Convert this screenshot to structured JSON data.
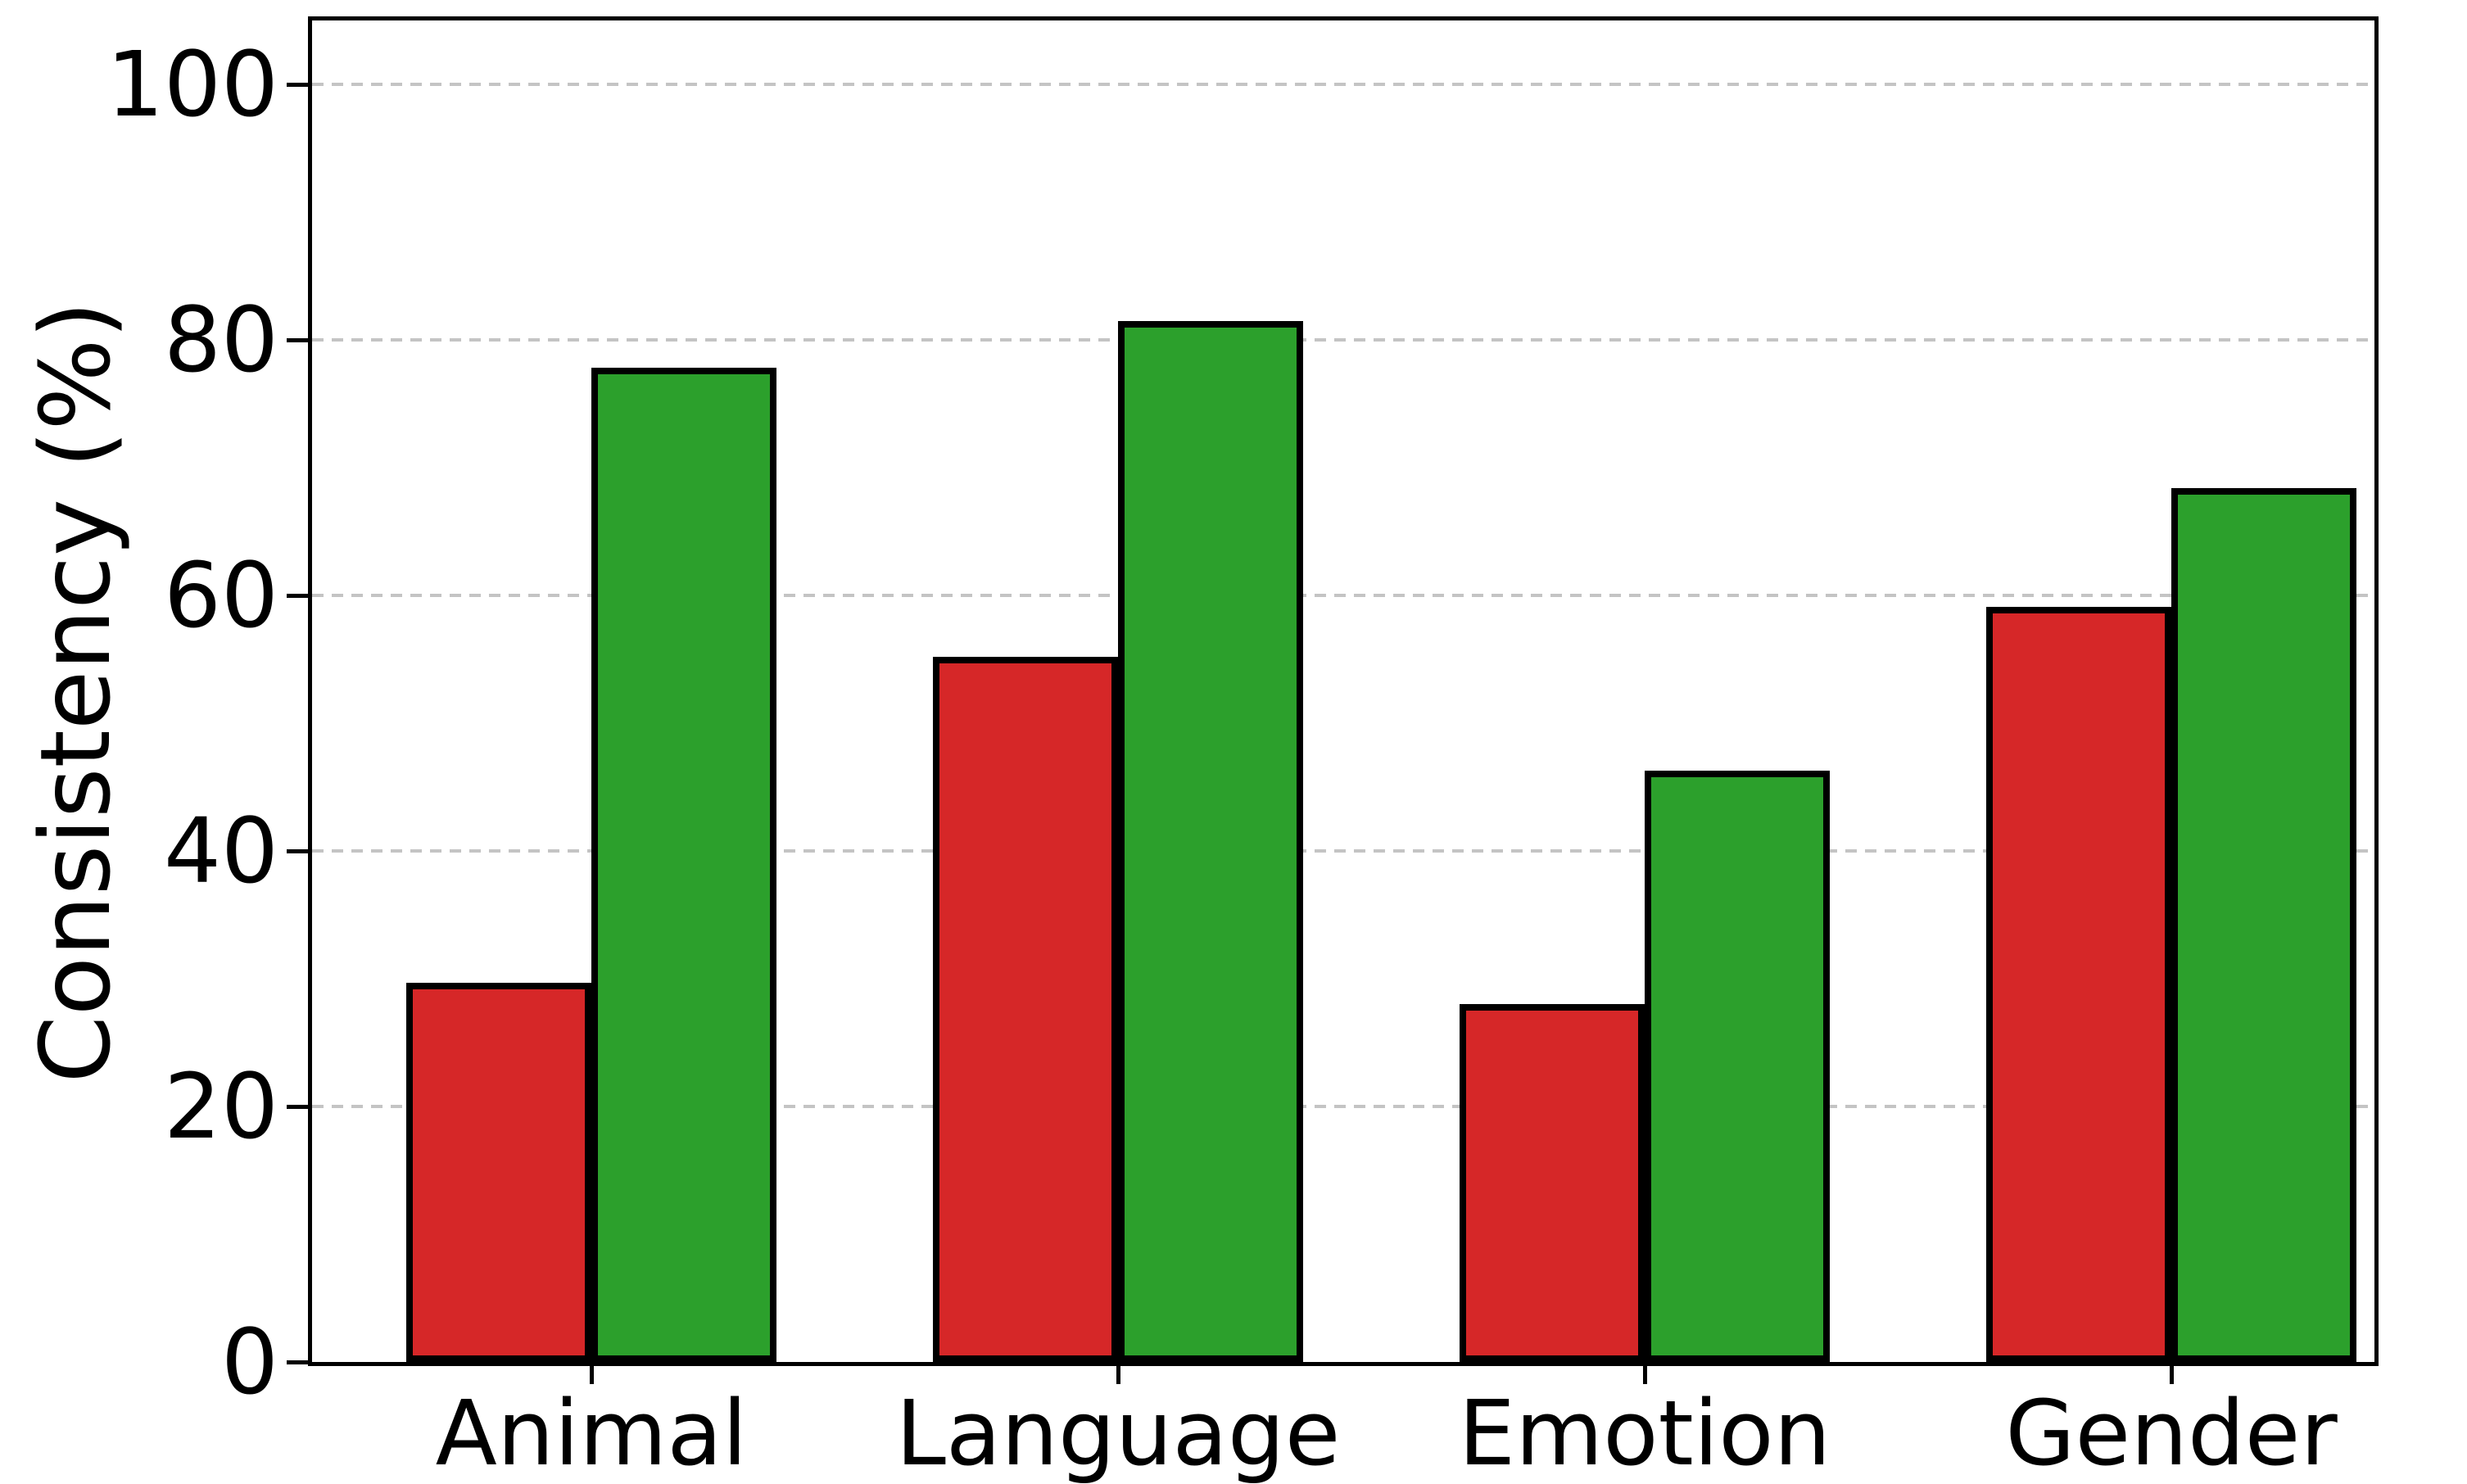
{
  "chart_data": {
    "type": "bar",
    "title": "",
    "xlabel": "",
    "ylabel": "Consistency (%)",
    "categories": [
      "Animal",
      "Language",
      "Emotion",
      "Gender"
    ],
    "series": [
      {
        "name": "red",
        "color": "#d62728",
        "values": [
          29.7,
          55.2,
          28.0,
          59.1
        ]
      },
      {
        "name": "green",
        "color": "#2ca02c",
        "values": [
          77.8,
          81.5,
          46.3,
          68.4
        ]
      }
    ],
    "yticks": [
      0,
      20,
      40,
      60,
      80,
      100
    ],
    "ytick_labels": [
      "0",
      "20",
      "40",
      "60",
      "80",
      "100"
    ],
    "ylim": [
      0,
      105
    ],
    "grid": "horizontal-dashed",
    "gridline_color": "#c4c4c4",
    "bar_edge_color": "#000000",
    "frame_color": "#000000",
    "background": "#ffffff",
    "legend": "none"
  }
}
